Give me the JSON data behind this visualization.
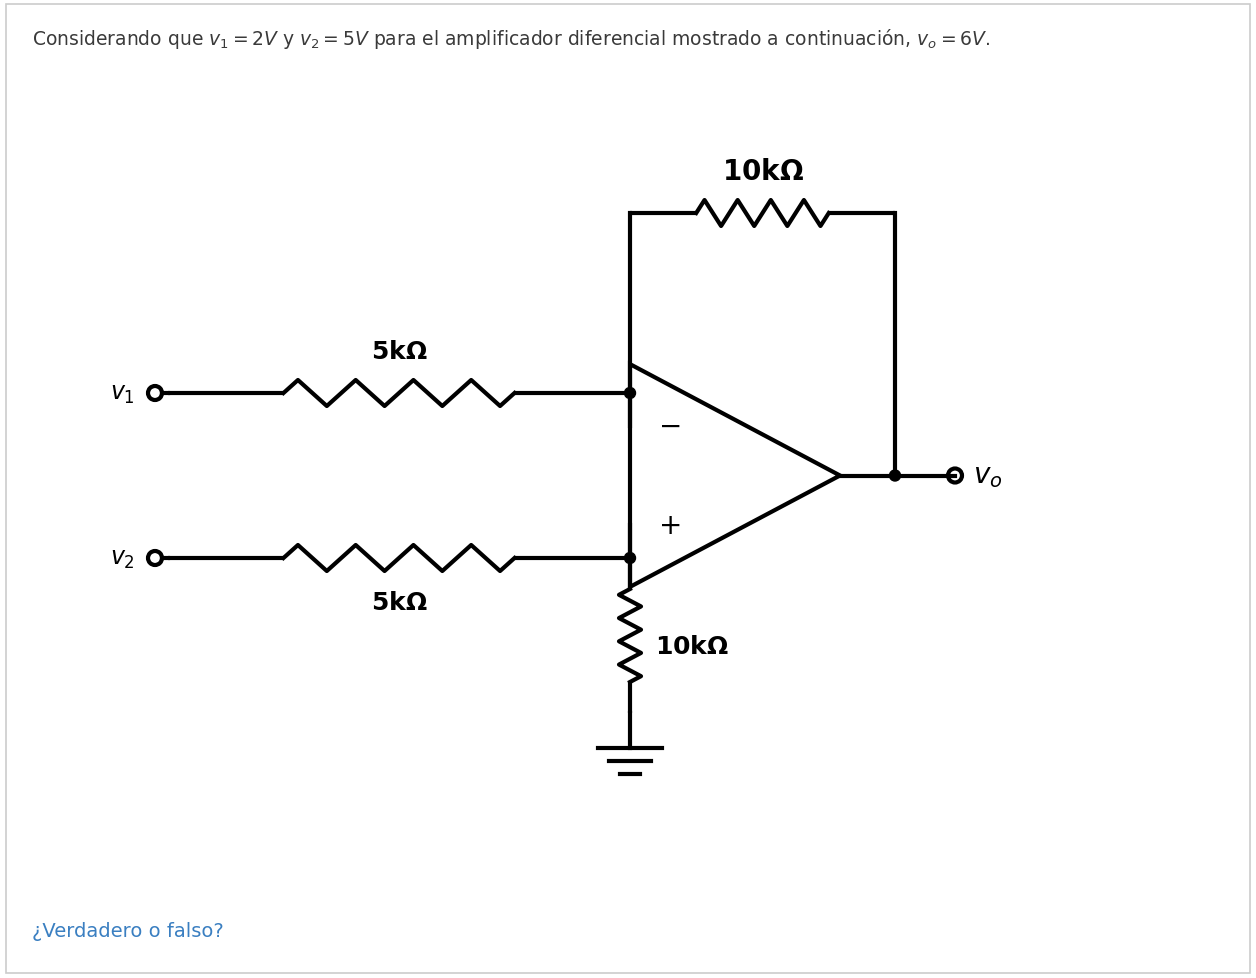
{
  "title_color": "#3a3a3a",
  "bottom_color": "#3a7fc1",
  "line_color": "#000000",
  "background_color": "#ffffff",
  "lw": 3.0,
  "opamp_lw": 3.0,
  "dot_r": 0.055,
  "term_r": 0.07,
  "res_amplitude": 0.13,
  "n_peaks": 4
}
